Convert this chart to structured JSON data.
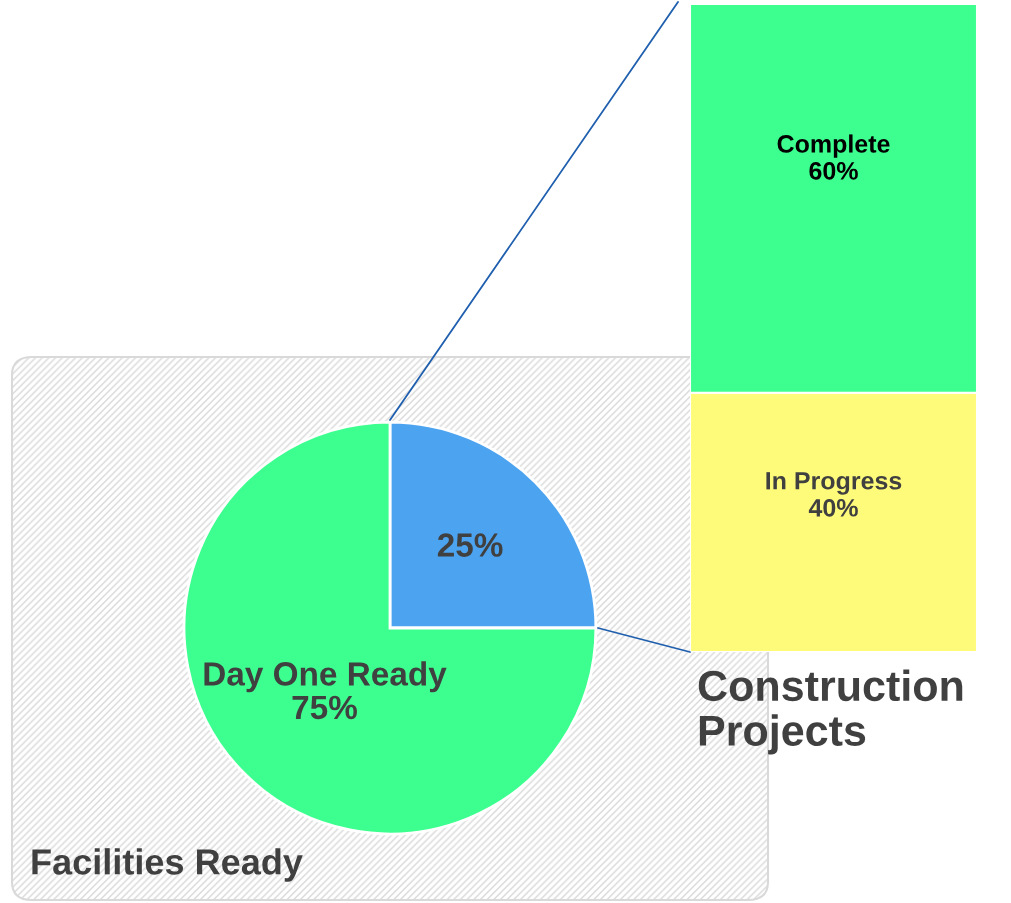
{
  "chart_data": [
    {
      "type": "pie",
      "title": "Facilities Ready",
      "categories": [
        null,
        "Day One Ready"
      ],
      "values": [
        25,
        75
      ],
      "colors": [
        "#4ca3f0",
        "#3cff8f"
      ],
      "value_labels": [
        "25%",
        "75%"
      ]
    },
    {
      "type": "bar",
      "stacked": true,
      "title": "Construction Projects",
      "categories": [
        null
      ],
      "series": [
        {
          "name": "In Progress",
          "color": "#fffb7a",
          "values": [
            40
          ],
          "value_labels": [
            "40%"
          ]
        },
        {
          "name": "Complete",
          "color": "#3cff8f",
          "values": [
            60
          ],
          "value_labels": [
            "60%"
          ]
        }
      ]
    }
  ]
}
